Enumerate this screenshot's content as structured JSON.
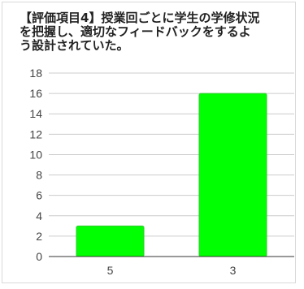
{
  "chart_data": {
    "type": "bar",
    "title": "【評価項目4】授業回ごとに学生の学修状況\nを把握し、適切なフィードバックをするよ\nう設計されていた。",
    "xlabel": "",
    "ylabel": "",
    "categories": [
      "5",
      "3"
    ],
    "values": [
      3,
      16
    ],
    "ylim": [
      0,
      18
    ],
    "yticks": [
      0,
      2,
      4,
      6,
      8,
      10,
      12,
      14,
      16,
      18
    ],
    "grid": true,
    "legend": "none",
    "colors": {
      "bar": "#00ff00",
      "bar_edge": "#33cc33",
      "grid": "#cccccc",
      "axis": "#333333"
    }
  }
}
